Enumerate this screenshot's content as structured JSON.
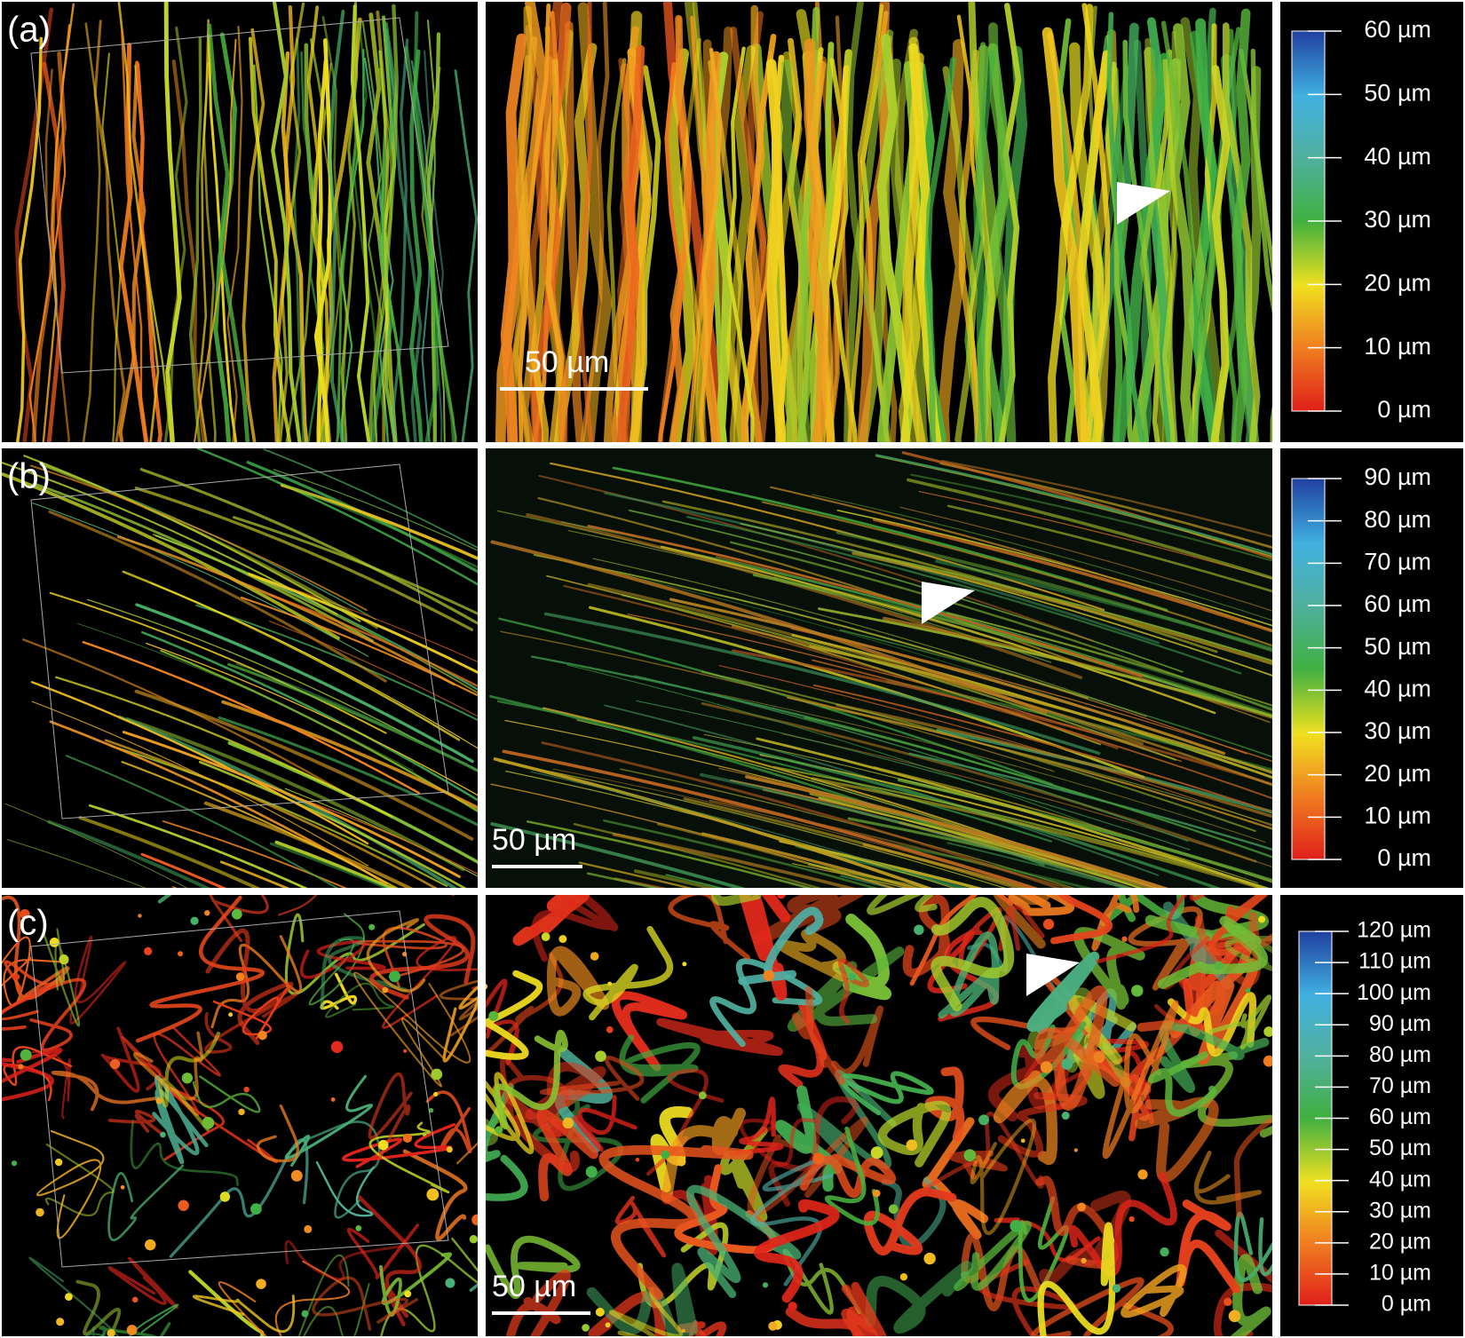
{
  "panels": [
    {
      "label": "(a)",
      "scale_bar": "50 µm",
      "colorbar": [
        "0 µm",
        "10 µm",
        "20 µm",
        "30 µm",
        "40 µm",
        "50 µm",
        "60 µm"
      ]
    },
    {
      "label": "(b)",
      "scale_bar": "50 µm",
      "colorbar": [
        "0 µm",
        "10 µm",
        "20 µm",
        "30 µm",
        "40 µm",
        "50 µm",
        "60 µm",
        "70 µm",
        "80 µm",
        "90 µm"
      ]
    },
    {
      "label": "(c)",
      "scale_bar": "50 µm",
      "colorbar": [
        "0 µm",
        "10 µm",
        "20 µm",
        "30 µm",
        "40 µm",
        "50 µm",
        "60 µm",
        "70 µm",
        "80 µm",
        "90 µm",
        "100 µm",
        "110 µm",
        "120 µm"
      ]
    }
  ]
}
